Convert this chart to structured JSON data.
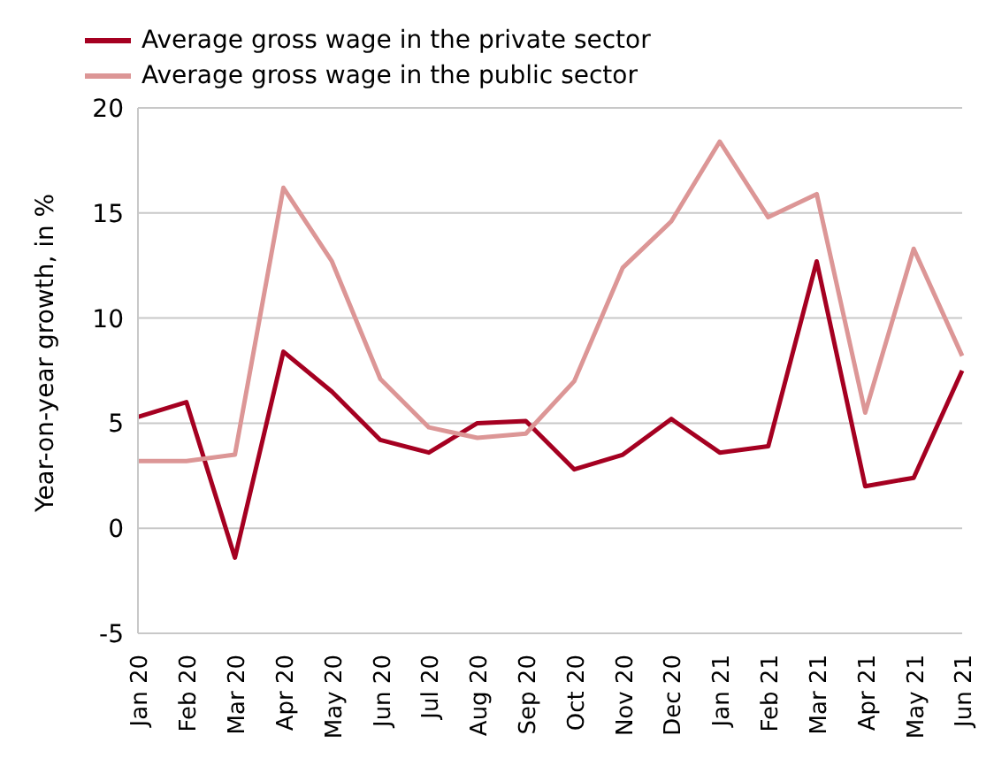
{
  "chart_data": {
    "type": "line",
    "ylabel": "Year-on-year growth, in %",
    "categories": [
      "Jan 20",
      "Feb 20",
      "Mar 20",
      "Apr 20",
      "May 20",
      "Jun 20",
      "Jul 20",
      "Aug 20",
      "Sep 20",
      "Oct 20",
      "Nov 20",
      "Dec 20",
      "Jan 21",
      "Feb 21",
      "Mar 21",
      "Apr 21",
      "May 21",
      "Jun 21"
    ],
    "series": [
      {
        "name": "Average gross wage in the private sector",
        "color": "#a50021",
        "values": [
          5.3,
          6.0,
          -1.4,
          8.4,
          6.5,
          4.2,
          3.6,
          5.0,
          5.1,
          2.8,
          3.5,
          5.2,
          3.6,
          3.9,
          12.7,
          2.0,
          2.4,
          7.5
        ]
      },
      {
        "name": "Average gross wage in the public sector",
        "color": "#dc9696",
        "values": [
          3.2,
          3.2,
          3.5,
          16.2,
          12.7,
          7.1,
          4.8,
          4.3,
          4.5,
          7.0,
          12.4,
          14.6,
          18.4,
          14.8,
          15.9,
          5.5,
          13.3,
          8.2
        ]
      }
    ],
    "ylim": [
      -5,
      20
    ],
    "yticks": [
      -5,
      0,
      5,
      10,
      15,
      20
    ],
    "grid": "y",
    "legend": "top left",
    "marker": "none",
    "line_style": "solid"
  }
}
